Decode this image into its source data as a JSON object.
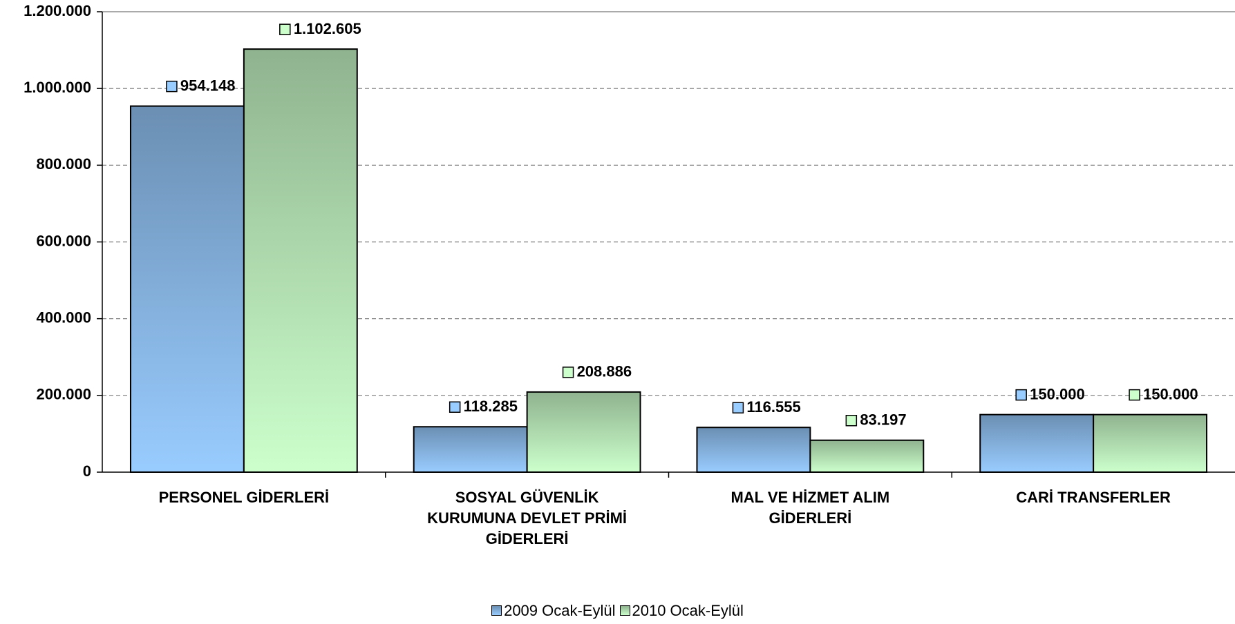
{
  "chart_data": {
    "type": "bar",
    "categories": [
      "PERSONEL GİDERLERİ",
      "SOSYAL GÜVENLİK KURUMUNA DEVLET PRİMİ GİDERLERİ",
      "MAL VE HİZMET ALIM GİDERLERİ",
      "CARİ TRANSFERLER"
    ],
    "series": [
      {
        "name": "2009 Ocak-Eylül",
        "color": "#99ccff",
        "values": [
          954148,
          118285,
          116555,
          150000
        ],
        "value_labels": [
          "954.148",
          "118.285",
          "116.555",
          "150.000"
        ]
      },
      {
        "name": "2010 Ocak-Eylül",
        "color": "#ccffcc",
        "values": [
          1102605,
          208886,
          83197,
          150000
        ],
        "value_labels": [
          "1.102.605",
          "208.886",
          "83.197",
          "150.000"
        ]
      }
    ],
    "ylim": [
      0,
      1200000
    ],
    "yticks": [
      {
        "value": 0,
        "label": "0"
      },
      {
        "value": 200000,
        "label": "200.000"
      },
      {
        "value": 400000,
        "label": "400.000"
      },
      {
        "value": 600000,
        "label": "600.000"
      },
      {
        "value": 800000,
        "label": "800.000"
      },
      {
        "value": 1000000,
        "label": "1.000.000"
      },
      {
        "value": 1200000,
        "label": "1.200.000"
      }
    ],
    "grid": true,
    "legend": "bottom"
  }
}
